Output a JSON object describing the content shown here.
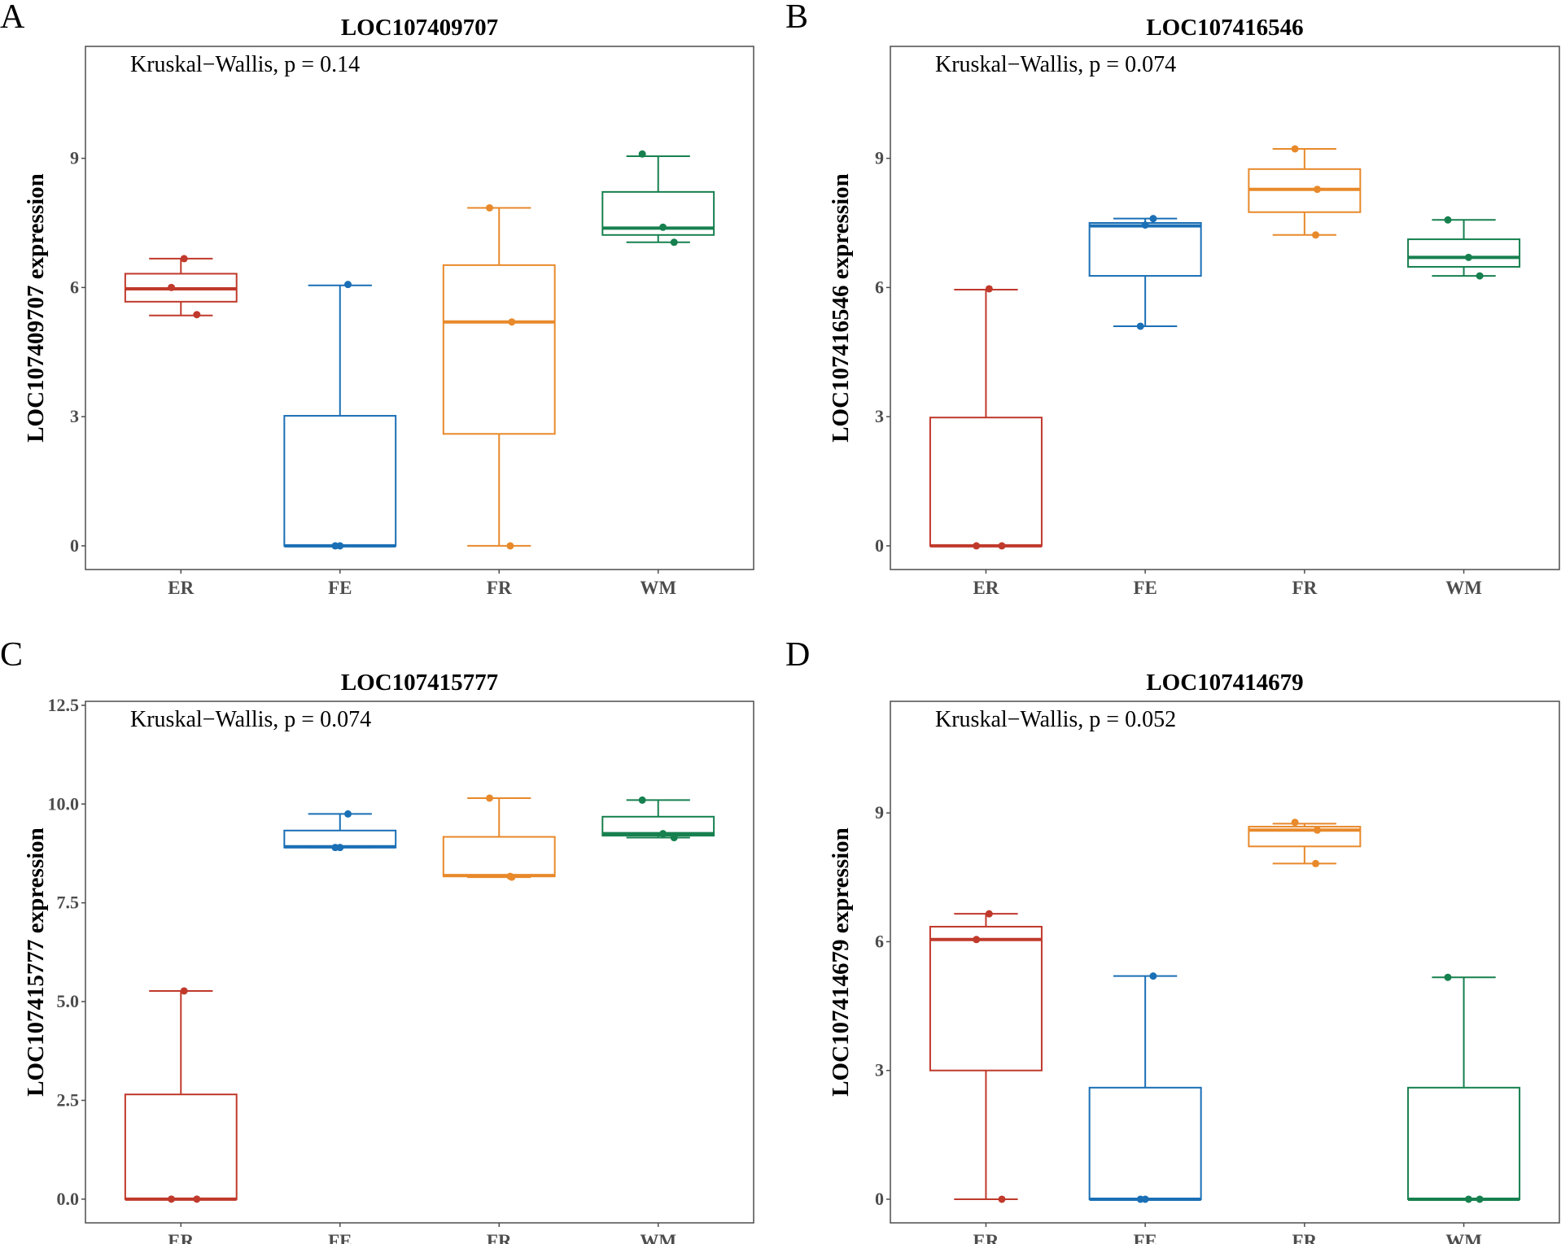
{
  "chart_data": [
    {
      "type": "box",
      "panel_label": "A",
      "title": "LOC107409707",
      "ylabel": "LOC107409707 expression",
      "annotation": "Kruskal−Wallis, p = 0.14",
      "categories": [
        "ER",
        "FE",
        "FR",
        "WM"
      ],
      "yticks": [
        0,
        3,
        6,
        9
      ],
      "ytick_labels": [
        "0",
        "3",
        "6",
        "9"
      ],
      "ylim": [
        -0.55,
        11.6
      ],
      "grid": false,
      "boxes": [
        {
          "q1": 5.67,
          "median": 5.97,
          "q3": 6.32,
          "whisker_low": 5.35,
          "whisker_high": 6.67,
          "points": [
            6.67,
            6.0,
            5.37
          ]
        },
        {
          "q1": 0,
          "median": 0,
          "q3": 3.02,
          "whisker_low": 0,
          "whisker_high": 6.05,
          "points": [
            6.07,
            0,
            0
          ]
        },
        {
          "q1": 2.6,
          "median": 5.2,
          "q3": 6.52,
          "whisker_low": 0,
          "whisker_high": 7.85,
          "points": [
            7.85,
            5.2,
            0
          ]
        },
        {
          "q1": 7.22,
          "median": 7.38,
          "q3": 8.22,
          "whisker_low": 7.05,
          "whisker_high": 9.05,
          "points": [
            9.1,
            7.4,
            7.05
          ]
        }
      ]
    },
    {
      "type": "box",
      "panel_label": "B",
      "title": "LOC107416546",
      "ylabel": "LOC107416546 expression",
      "annotation": "Kruskal−Wallis, p = 0.074",
      "categories": [
        "ER",
        "FE",
        "FR",
        "WM"
      ],
      "yticks": [
        0,
        3,
        6,
        9
      ],
      "ytick_labels": [
        "0",
        "3",
        "6",
        "9"
      ],
      "ylim": [
        -0.55,
        11.6
      ],
      "grid": false,
      "boxes": [
        {
          "q1": 0,
          "median": 0,
          "q3": 2.98,
          "whisker_low": 0,
          "whisker_high": 5.95,
          "points": [
            5.97,
            0,
            0
          ]
        },
        {
          "q1": 6.27,
          "median": 7.43,
          "q3": 7.5,
          "whisker_low": 5.1,
          "whisker_high": 7.6,
          "points": [
            7.6,
            7.45,
            5.1
          ]
        },
        {
          "q1": 7.75,
          "median": 8.28,
          "q3": 8.75,
          "whisker_low": 7.22,
          "whisker_high": 9.22,
          "points": [
            9.22,
            8.28,
            7.22
          ]
        },
        {
          "q1": 6.48,
          "median": 6.7,
          "q3": 7.12,
          "whisker_low": 6.27,
          "whisker_high": 7.57,
          "points": [
            7.57,
            6.7,
            6.27
          ]
        }
      ]
    },
    {
      "type": "box",
      "panel_label": "C",
      "title": "LOC107415777",
      "ylabel": "LOC107415777 expression",
      "annotation": "Kruskal−Wallis, p = 0.074",
      "categories": [
        "ER",
        "FE",
        "FR",
        "WM"
      ],
      "yticks": [
        0,
        2.5,
        5,
        7.5,
        10,
        12.5
      ],
      "ytick_labels": [
        "0.0",
        "2.5",
        "5.0",
        "7.5",
        "10.0",
        "12.5"
      ],
      "ylim": [
        -0.6,
        12.6
      ],
      "grid": false,
      "boxes": [
        {
          "q1": 0,
          "median": 0,
          "q3": 2.65,
          "whisker_low": 0,
          "whisker_high": 5.27,
          "points": [
            5.27,
            0,
            0
          ]
        },
        {
          "q1": 8.9,
          "median": 8.92,
          "q3": 9.33,
          "whisker_low": 8.9,
          "whisker_high": 9.75,
          "points": [
            9.75,
            8.9,
            8.9
          ]
        },
        {
          "q1": 8.17,
          "median": 8.19,
          "q3": 9.17,
          "whisker_low": 8.15,
          "whisker_high": 10.15,
          "points": [
            10.15,
            8.15,
            8.17
          ]
        },
        {
          "q1": 9.2,
          "median": 9.25,
          "q3": 9.68,
          "whisker_low": 9.15,
          "whisker_high": 10.1,
          "points": [
            10.1,
            9.25,
            9.15
          ]
        }
      ]
    },
    {
      "type": "box",
      "panel_label": "D",
      "title": "LOC107414679",
      "ylabel": "LOC107414679 expression",
      "annotation": "Kruskal−Wallis, p = 0.052",
      "categories": [
        "ER",
        "FE",
        "FR",
        "WM"
      ],
      "yticks": [
        0,
        3,
        6,
        9
      ],
      "ytick_labels": [
        "0",
        "3",
        "6",
        "9"
      ],
      "ylim": [
        -0.55,
        11.6
      ],
      "grid": false,
      "boxes": [
        {
          "q1": 3.0,
          "median": 6.05,
          "q3": 6.35,
          "whisker_low": 0,
          "whisker_high": 6.65,
          "points": [
            6.65,
            6.05,
            0
          ]
        },
        {
          "q1": 0,
          "median": 0,
          "q3": 2.6,
          "whisker_low": 0,
          "whisker_high": 5.2,
          "points": [
            5.2,
            0,
            0
          ]
        },
        {
          "q1": 8.22,
          "median": 8.6,
          "q3": 8.68,
          "whisker_low": 7.82,
          "whisker_high": 8.75,
          "points": [
            8.78,
            8.6,
            7.82
          ]
        },
        {
          "q1": 0,
          "median": 0,
          "q3": 2.6,
          "whisker_low": 0,
          "whisker_high": 5.17,
          "points": [
            5.17,
            0,
            0
          ]
        }
      ]
    }
  ],
  "colors": {
    "ER": "#c0392b",
    "FE": "#1a6fb5",
    "FR": "#e8892b",
    "WM": "#16804f",
    "axis": "#4d4d4d",
    "tick_text": "#4d4d4d"
  }
}
